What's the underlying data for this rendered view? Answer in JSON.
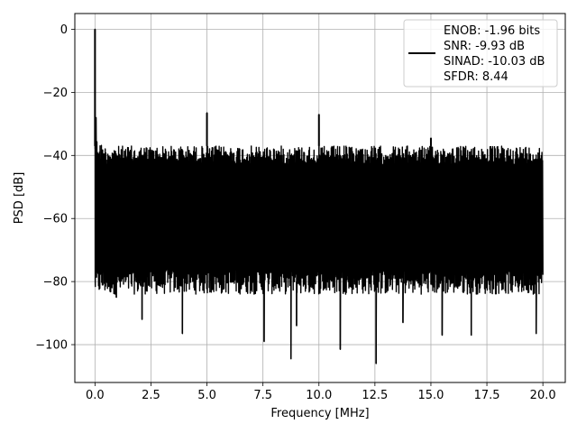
{
  "chart_data": {
    "type": "line",
    "title": "",
    "xlabel": "Frequency [MHz]",
    "ylabel": "PSD [dB]",
    "xlim": [
      -0.9,
      21.0
    ],
    "ylim": [
      -112,
      5
    ],
    "grid": true,
    "legend_placement": "top-right",
    "x_ticks": [
      "0.0",
      "2.5",
      "5.0",
      "7.5",
      "10.0",
      "12.5",
      "15.0",
      "17.5",
      "20.0"
    ],
    "x_tick_values": [
      0,
      2.5,
      5,
      7.5,
      10,
      12.5,
      15,
      17.5,
      20
    ],
    "y_ticks": [
      "0",
      "−20",
      "−40",
      "−60",
      "−80",
      "−100"
    ],
    "y_tick_values": [
      0,
      -20,
      -40,
      -60,
      -80,
      -100
    ],
    "series": [
      {
        "name": "",
        "color": "#000000",
        "description_of_shape": "dense noise spectrum",
        "floor_top": -37,
        "floor_bottom": -80,
        "spikes": [
          {
            "x": 0.0,
            "y": 0
          },
          {
            "x": 5.0,
            "y": -26.5
          },
          {
            "x": 10.0,
            "y": -27
          },
          {
            "x": 15.0,
            "y": -34.5
          }
        ],
        "deep_nulls": [
          {
            "x": 0.95,
            "y": -85
          },
          {
            "x": 2.1,
            "y": -92
          },
          {
            "x": 3.9,
            "y": -96.5
          },
          {
            "x": 7.55,
            "y": -99
          },
          {
            "x": 8.75,
            "y": -104.5
          },
          {
            "x": 9.0,
            "y": -94
          },
          {
            "x": 10.95,
            "y": -101.5
          },
          {
            "x": 12.55,
            "y": -106
          },
          {
            "x": 13.75,
            "y": -93
          },
          {
            "x": 15.5,
            "y": -97
          },
          {
            "x": 16.8,
            "y": -97
          },
          {
            "x": 19.7,
            "y": -96.5
          }
        ]
      }
    ],
    "legend": {
      "lines": [
        "ENOB: -1.96 bits",
        "SNR: -9.93 dB",
        "SINAD: -10.03 dB",
        "SFDR: 8.44"
      ]
    }
  }
}
